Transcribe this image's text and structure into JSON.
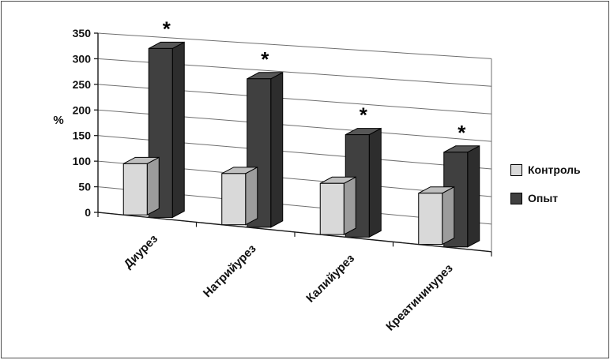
{
  "figure": {
    "background": "#ffffff",
    "border_color": "#4d4d4d"
  },
  "chart_data": {
    "type": "bar",
    "variant": "3d-clustered",
    "title": "",
    "xlabel": "",
    "ylabel": "%",
    "categories": [
      "Диурез",
      "Натрийурез",
      "Калийурез",
      "Креатининурез"
    ],
    "series": [
      {
        "name": "Контроль",
        "color": "#d9d9d9",
        "values": [
          100,
          100,
          100,
          100
        ]
      },
      {
        "name": "Опыт",
        "color": "#404040",
        "values": [
          330,
          290,
          200,
          185
        ],
        "significance": [
          "*",
          "*",
          "*",
          "*"
        ]
      }
    ],
    "yticks": [
      0,
      50,
      100,
      150,
      200,
      250,
      300,
      350
    ],
    "ylim": [
      0,
      350
    ],
    "grid": true,
    "legend_position": "right",
    "annotation_symbol": "*"
  }
}
